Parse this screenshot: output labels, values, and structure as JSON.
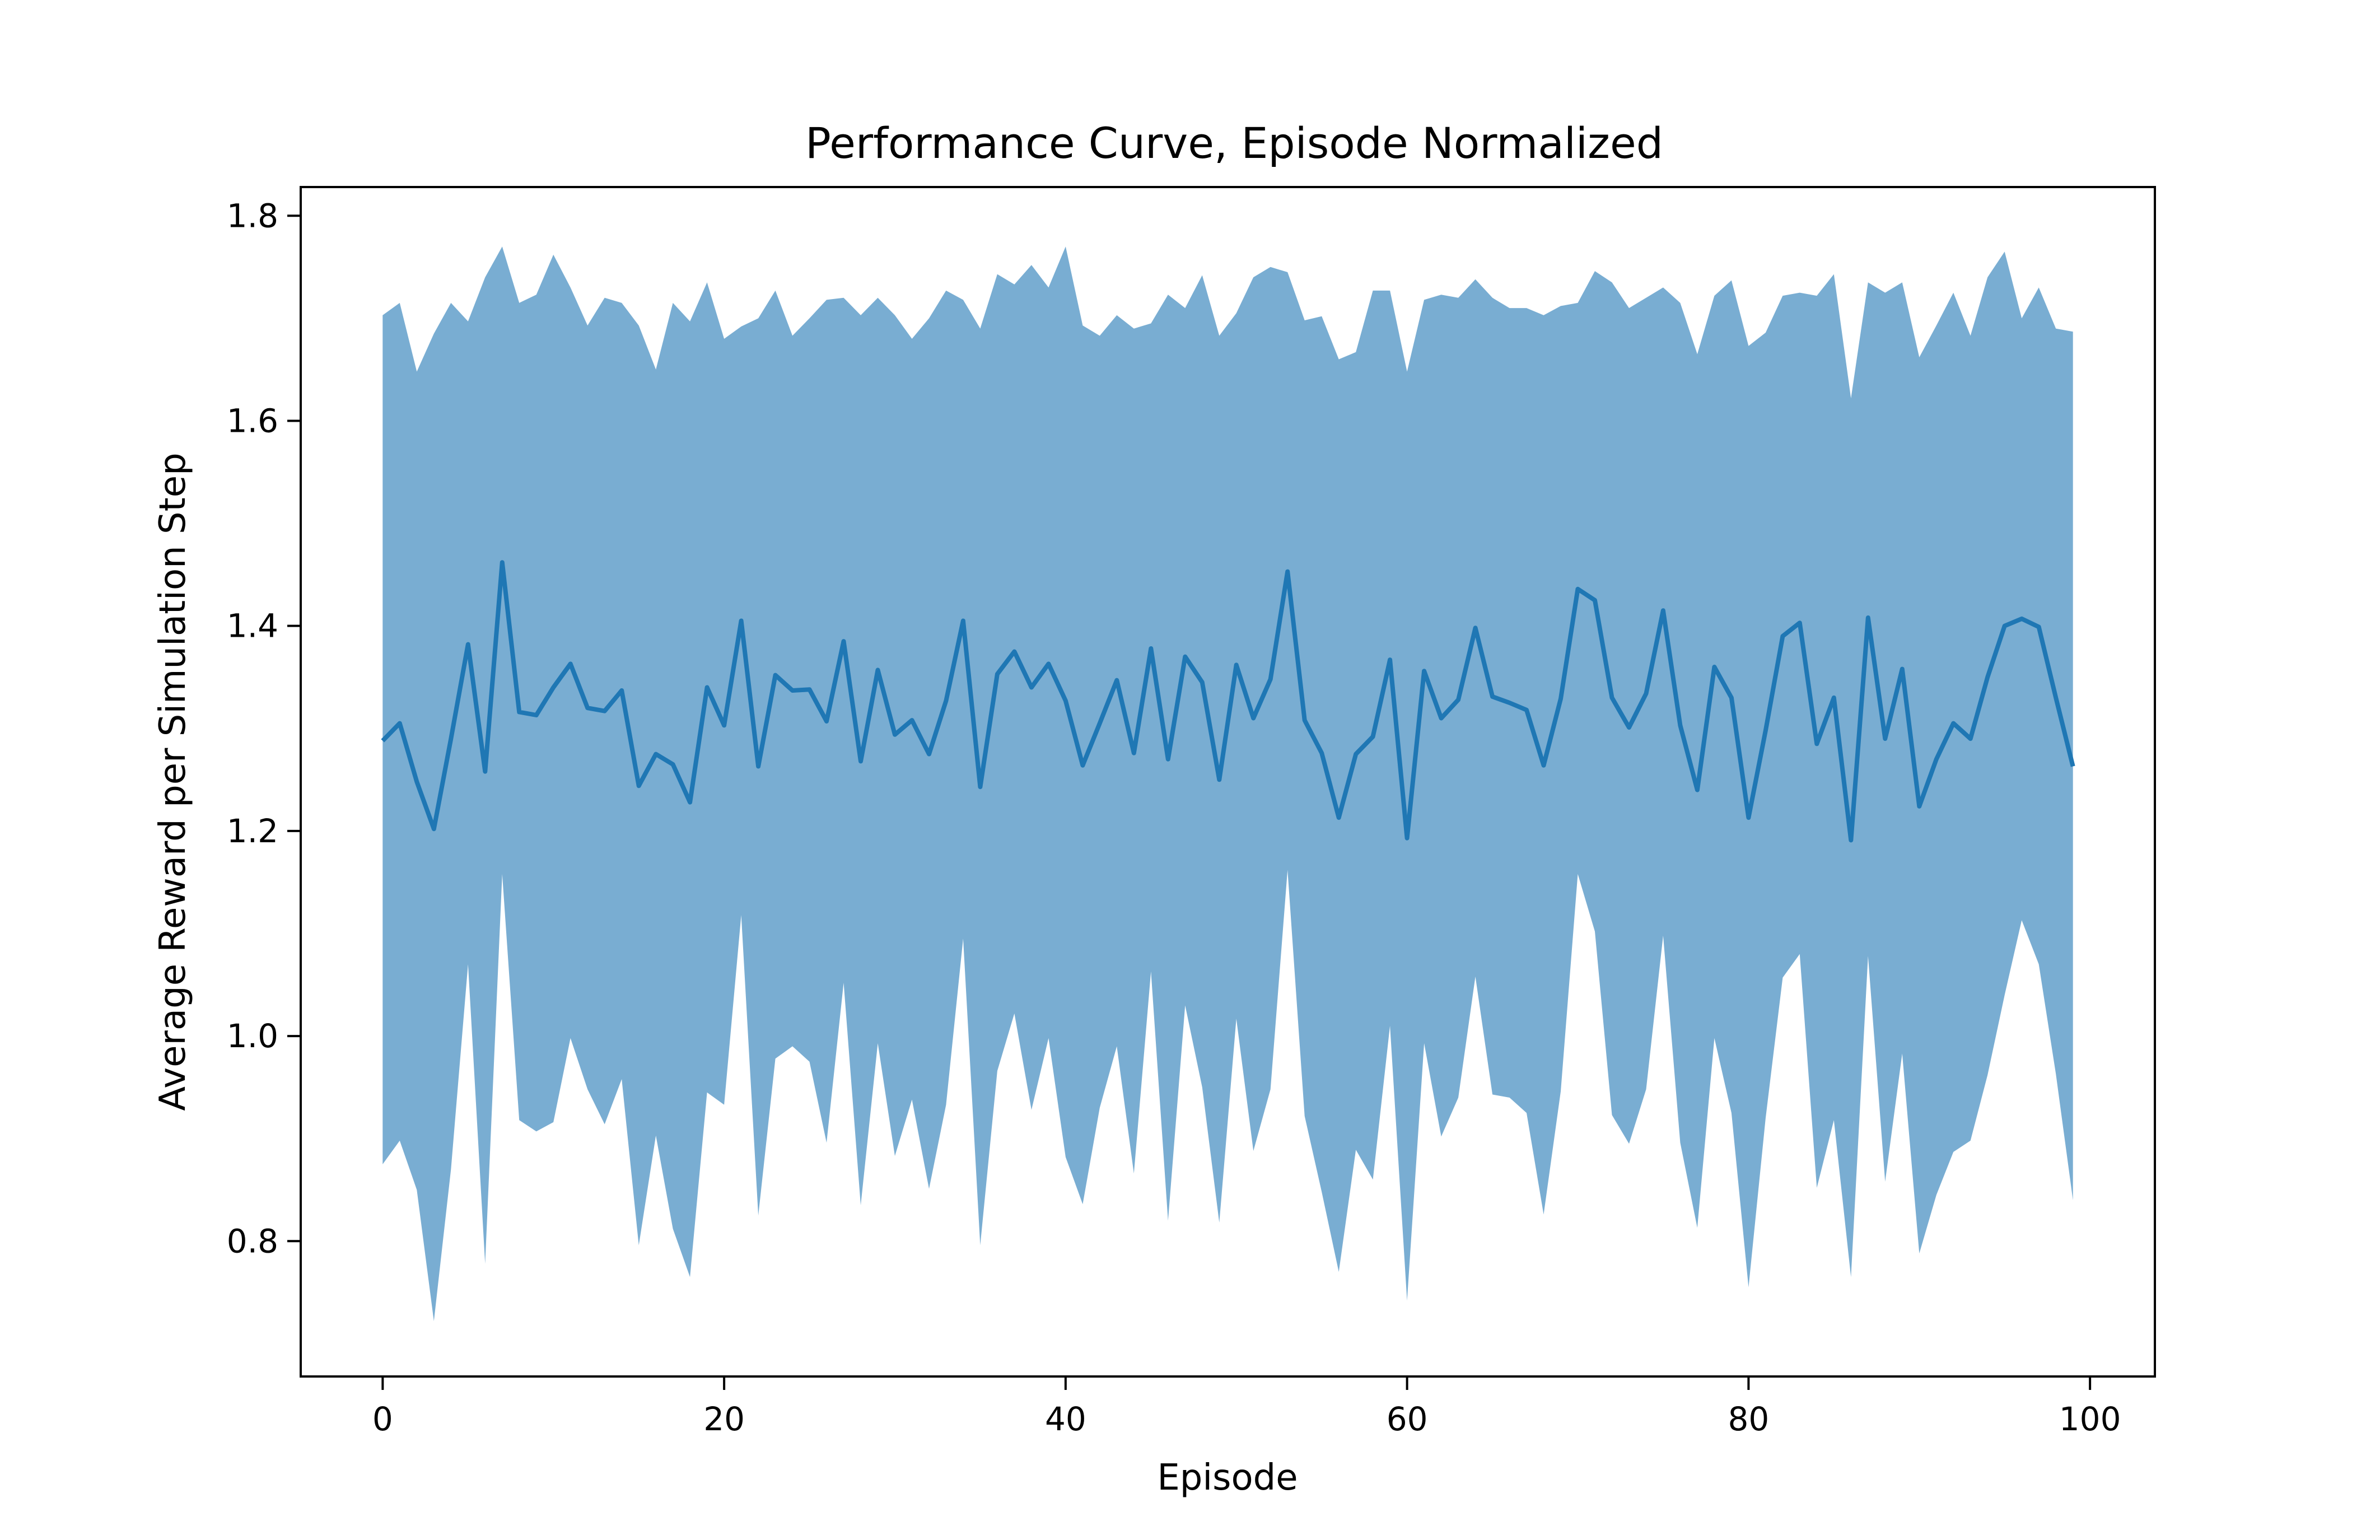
{
  "chart_data": {
    "type": "line",
    "title": "Performance Curve, Episode Normalized",
    "xlabel": "Episode",
    "ylabel": "Average Reward per Simulation Step",
    "xlim": [
      -4.8,
      103.8
    ],
    "ylim": [
      0.668,
      1.828
    ],
    "xticks": [
      0,
      20,
      40,
      60,
      80,
      100
    ],
    "yticks": [
      0.8,
      1.0,
      1.2,
      1.4,
      1.6,
      1.8
    ],
    "xtick_labels": [
      "0",
      "20",
      "40",
      "60",
      "80",
      "100"
    ],
    "ytick_labels": [
      "0.8",
      "1.0",
      "1.2",
      "1.4",
      "1.6",
      "1.8"
    ],
    "grid": false,
    "legend": "none",
    "colors": {
      "line": "#1f77b4",
      "band": "#1f77b4",
      "band_opacity": 0.6
    },
    "series": [
      {
        "x": [
          0,
          1,
          2,
          3,
          4,
          5,
          6,
          7,
          8,
          9,
          10,
          11,
          12,
          13,
          14,
          15,
          16,
          17,
          18,
          19,
          20,
          21,
          22,
          23,
          24,
          25,
          26,
          27,
          28,
          29,
          30,
          31,
          32,
          33,
          34,
          35,
          36,
          37,
          38,
          39,
          40,
          41,
          42,
          43,
          44,
          45,
          46,
          47,
          48,
          49,
          50,
          51,
          52,
          53,
          54,
          55,
          56,
          57,
          58,
          59,
          60,
          61,
          62,
          63,
          64,
          65,
          66,
          67,
          68,
          69,
          70,
          71,
          72,
          73,
          74,
          75,
          76,
          77,
          78,
          79,
          80,
          81,
          82,
          83,
          84,
          85,
          86,
          87,
          88,
          89,
          90,
          91,
          92,
          93,
          94,
          95,
          96,
          97,
          98,
          99
        ],
        "mean": [
          1.288,
          1.305,
          1.248,
          1.202,
          1.29,
          1.382,
          1.258,
          1.462,
          1.316,
          1.313,
          1.34,
          1.363,
          1.32,
          1.317,
          1.337,
          1.244,
          1.275,
          1.265,
          1.228,
          1.34,
          1.303,
          1.405,
          1.263,
          1.352,
          1.337,
          1.338,
          1.307,
          1.385,
          1.268,
          1.357,
          1.294,
          1.308,
          1.275,
          1.327,
          1.405,
          1.243,
          1.353,
          1.375,
          1.34,
          1.363,
          1.327,
          1.264,
          1.305,
          1.347,
          1.276,
          1.378,
          1.27,
          1.37,
          1.345,
          1.25,
          1.362,
          1.31,
          1.348,
          1.453,
          1.308,
          1.276,
          1.213,
          1.275,
          1.292,
          1.367,
          1.193,
          1.356,
          1.31,
          1.328,
          1.398,
          1.331,
          1.325,
          1.318,
          1.264,
          1.329,
          1.436,
          1.425,
          1.33,
          1.301,
          1.334,
          1.415,
          1.303,
          1.24,
          1.36,
          1.33,
          1.213,
          1.298,
          1.39,
          1.403,
          1.285,
          1.33,
          1.191,
          1.408,
          1.29,
          1.358,
          1.224,
          1.27,
          1.305,
          1.29,
          1.35,
          1.4,
          1.407,
          1.399,
          1.33,
          1.263
        ],
        "upper": [
          1.703,
          1.715,
          1.648,
          1.685,
          1.715,
          1.697,
          1.74,
          1.77,
          1.715,
          1.723,
          1.762,
          1.73,
          1.693,
          1.72,
          1.715,
          1.693,
          1.65,
          1.715,
          1.697,
          1.735,
          1.68,
          1.692,
          1.7,
          1.727,
          1.683,
          1.7,
          1.718,
          1.72,
          1.703,
          1.72,
          1.703,
          1.68,
          1.7,
          1.727,
          1.718,
          1.69,
          1.743,
          1.733,
          1.752,
          1.73,
          1.77,
          1.693,
          1.683,
          1.703,
          1.69,
          1.695,
          1.723,
          1.71,
          1.742,
          1.683,
          1.705,
          1.74,
          1.75,
          1.745,
          1.698,
          1.702,
          1.66,
          1.667,
          1.727,
          1.727,
          1.648,
          1.718,
          1.723,
          1.72,
          1.738,
          1.72,
          1.71,
          1.71,
          1.703,
          1.712,
          1.715,
          1.746,
          1.735,
          1.71,
          1.72,
          1.73,
          1.715,
          1.665,
          1.722,
          1.737,
          1.673,
          1.686,
          1.722,
          1.725,
          1.722,
          1.743,
          1.622,
          1.735,
          1.725,
          1.735,
          1.662,
          1.693,
          1.725,
          1.683,
          1.74,
          1.765,
          1.7,
          1.73,
          1.69,
          1.687
        ],
        "lower": [
          0.875,
          0.898,
          0.85,
          0.722,
          0.87,
          1.07,
          0.778,
          1.158,
          0.918,
          0.907,
          0.916,
          0.998,
          0.948,
          0.914,
          0.958,
          0.796,
          0.903,
          0.812,
          0.765,
          0.945,
          0.933,
          1.118,
          0.825,
          0.978,
          0.99,
          0.975,
          0.896,
          1.052,
          0.835,
          0.993,
          0.883,
          0.938,
          0.851,
          0.933,
          1.095,
          0.796,
          0.966,
          1.022,
          0.928,
          0.998,
          0.882,
          0.836,
          0.93,
          0.99,
          0.866,
          1.063,
          0.82,
          1.03,
          0.95,
          0.818,
          1.017,
          0.888,
          0.948,
          1.162,
          0.922,
          0.848,
          0.77,
          0.889,
          0.86,
          1.01,
          0.742,
          0.993,
          0.902,
          0.94,
          1.058,
          0.943,
          0.94,
          0.925,
          0.826,
          0.946,
          1.158,
          1.102,
          0.923,
          0.895,
          0.948,
          1.098,
          0.896,
          0.813,
          0.998,
          0.925,
          0.755,
          0.92,
          1.057,
          1.08,
          0.852,
          0.918,
          0.765,
          1.078,
          0.858,
          0.983,
          0.788,
          0.845,
          0.887,
          0.898,
          0.962,
          1.04,
          1.113,
          1.07,
          0.963,
          0.84
        ]
      }
    ]
  }
}
